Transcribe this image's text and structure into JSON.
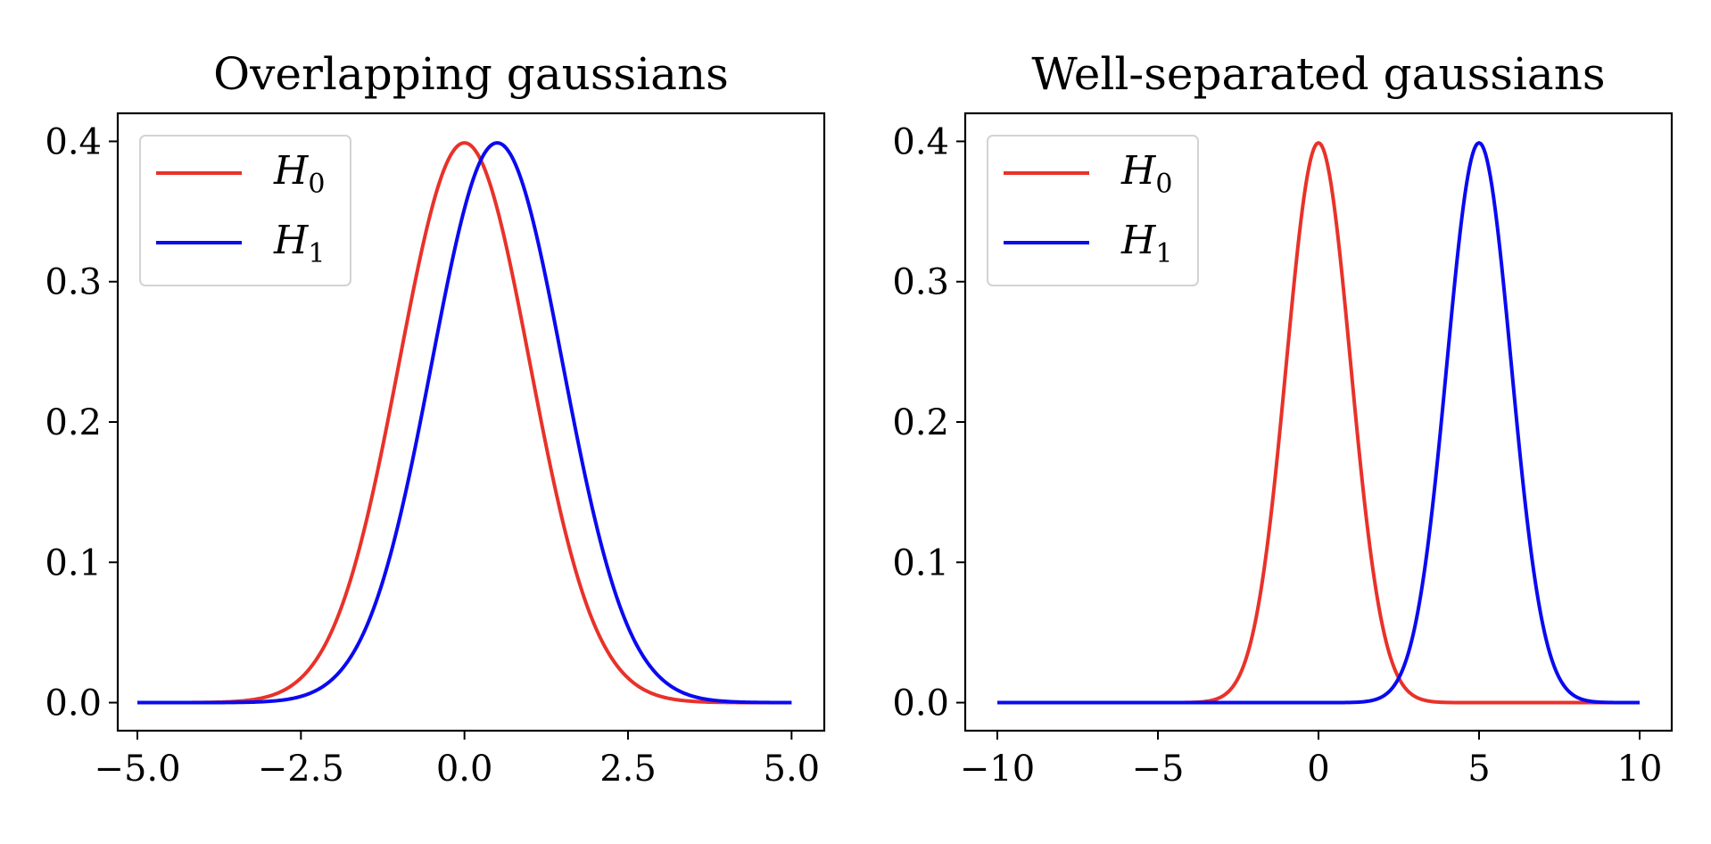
{
  "colors": {
    "h0": "#e8322a",
    "h1": "#0a0af0",
    "axes": "#000000",
    "legend_border": "#d3d3d3",
    "background": "#ffffff"
  },
  "chart_data": [
    {
      "type": "line",
      "title": "Overlapping gaussians",
      "xlabel": "",
      "ylabel": "",
      "xlim": [
        -5.3,
        5.5
      ],
      "ylim": [
        -0.02,
        0.42
      ],
      "xticks": [
        -5.0,
        -2.5,
        0.0,
        2.5,
        5.0
      ],
      "xtick_labels": [
        "−5.0",
        "−2.5",
        "0.0",
        "2.5",
        "5.0"
      ],
      "yticks": [
        0.0,
        0.1,
        0.2,
        0.3,
        0.4
      ],
      "ytick_labels": [
        "0.0",
        "0.1",
        "0.2",
        "0.3",
        "0.4"
      ],
      "grid": false,
      "legend_position": "top-left",
      "series": [
        {
          "name": "H0",
          "label_main": "H",
          "label_sub": "0",
          "color_key": "h0",
          "x": [
            -5.0,
            -4.5,
            -4.0,
            -3.5,
            -3.0,
            -2.5,
            -2.0,
            -1.5,
            -1.0,
            -0.5,
            0.0,
            0.5,
            1.0,
            1.5,
            2.0,
            2.5,
            3.0,
            3.5,
            4.0,
            4.5,
            5.0
          ],
          "y": [
            0.0,
            0.0,
            0.0001,
            0.0009,
            0.0044,
            0.0175,
            0.054,
            0.1295,
            0.242,
            0.3521,
            0.3989,
            0.3521,
            0.242,
            0.1295,
            0.054,
            0.0175,
            0.0044,
            0.0009,
            0.0001,
            0.0,
            0.0
          ]
        },
        {
          "name": "H1",
          "label_main": "H",
          "label_sub": "1",
          "color_key": "h1",
          "x": [
            -5.0,
            -4.5,
            -4.0,
            -3.5,
            -3.0,
            -2.5,
            -2.0,
            -1.5,
            -1.0,
            -0.5,
            0.0,
            0.5,
            1.0,
            1.5,
            2.0,
            2.5,
            3.0,
            3.5,
            4.0,
            4.5,
            5.0
          ],
          "y": [
            0.0,
            0.0,
            0.0,
            0.0001,
            0.0009,
            0.0044,
            0.0175,
            0.054,
            0.1295,
            0.242,
            0.3521,
            0.3989,
            0.3521,
            0.242,
            0.1295,
            0.054,
            0.0175,
            0.0044,
            0.0009,
            0.0001,
            0.0
          ]
        }
      ]
    },
    {
      "type": "line",
      "title": "Well-separated gaussians",
      "xlabel": "",
      "ylabel": "",
      "xlim": [
        -11.0,
        11.0
      ],
      "ylim": [
        -0.02,
        0.42
      ],
      "xticks": [
        -10,
        -5,
        0,
        5,
        10
      ],
      "xtick_labels": [
        "−10",
        "−5",
        "0",
        "5",
        "10"
      ],
      "yticks": [
        0.0,
        0.1,
        0.2,
        0.3,
        0.4
      ],
      "ytick_labels": [
        "0.0",
        "0.1",
        "0.2",
        "0.3",
        "0.4"
      ],
      "grid": false,
      "legend_position": "top-left",
      "series": [
        {
          "name": "H0",
          "label_main": "H",
          "label_sub": "0",
          "color_key": "h0",
          "x": [
            -10,
            -4,
            -3.5,
            -3,
            -2.5,
            -2,
            -1.5,
            -1,
            -0.5,
            0,
            0.5,
            1,
            1.5,
            2,
            2.5,
            3,
            3.5,
            4,
            10
          ],
          "y": [
            0.0,
            0.0001,
            0.0009,
            0.0044,
            0.0175,
            0.054,
            0.1295,
            0.242,
            0.3521,
            0.3989,
            0.3521,
            0.242,
            0.1295,
            0.054,
            0.0175,
            0.0044,
            0.0009,
            0.0001,
            0.0
          ]
        },
        {
          "name": "H1",
          "label_main": "H",
          "label_sub": "1",
          "color_key": "h1",
          "x": [
            -10,
            1,
            1.5,
            2,
            2.5,
            3,
            3.5,
            4,
            4.5,
            5,
            5.5,
            6,
            6.5,
            7,
            7.5,
            8,
            8.5,
            9,
            10
          ],
          "y": [
            0.0,
            0.0001,
            0.0009,
            0.0044,
            0.0175,
            0.054,
            0.1295,
            0.242,
            0.3521,
            0.3989,
            0.3521,
            0.242,
            0.1295,
            0.054,
            0.0175,
            0.0044,
            0.0009,
            0.0001,
            0.0
          ]
        }
      ]
    }
  ]
}
